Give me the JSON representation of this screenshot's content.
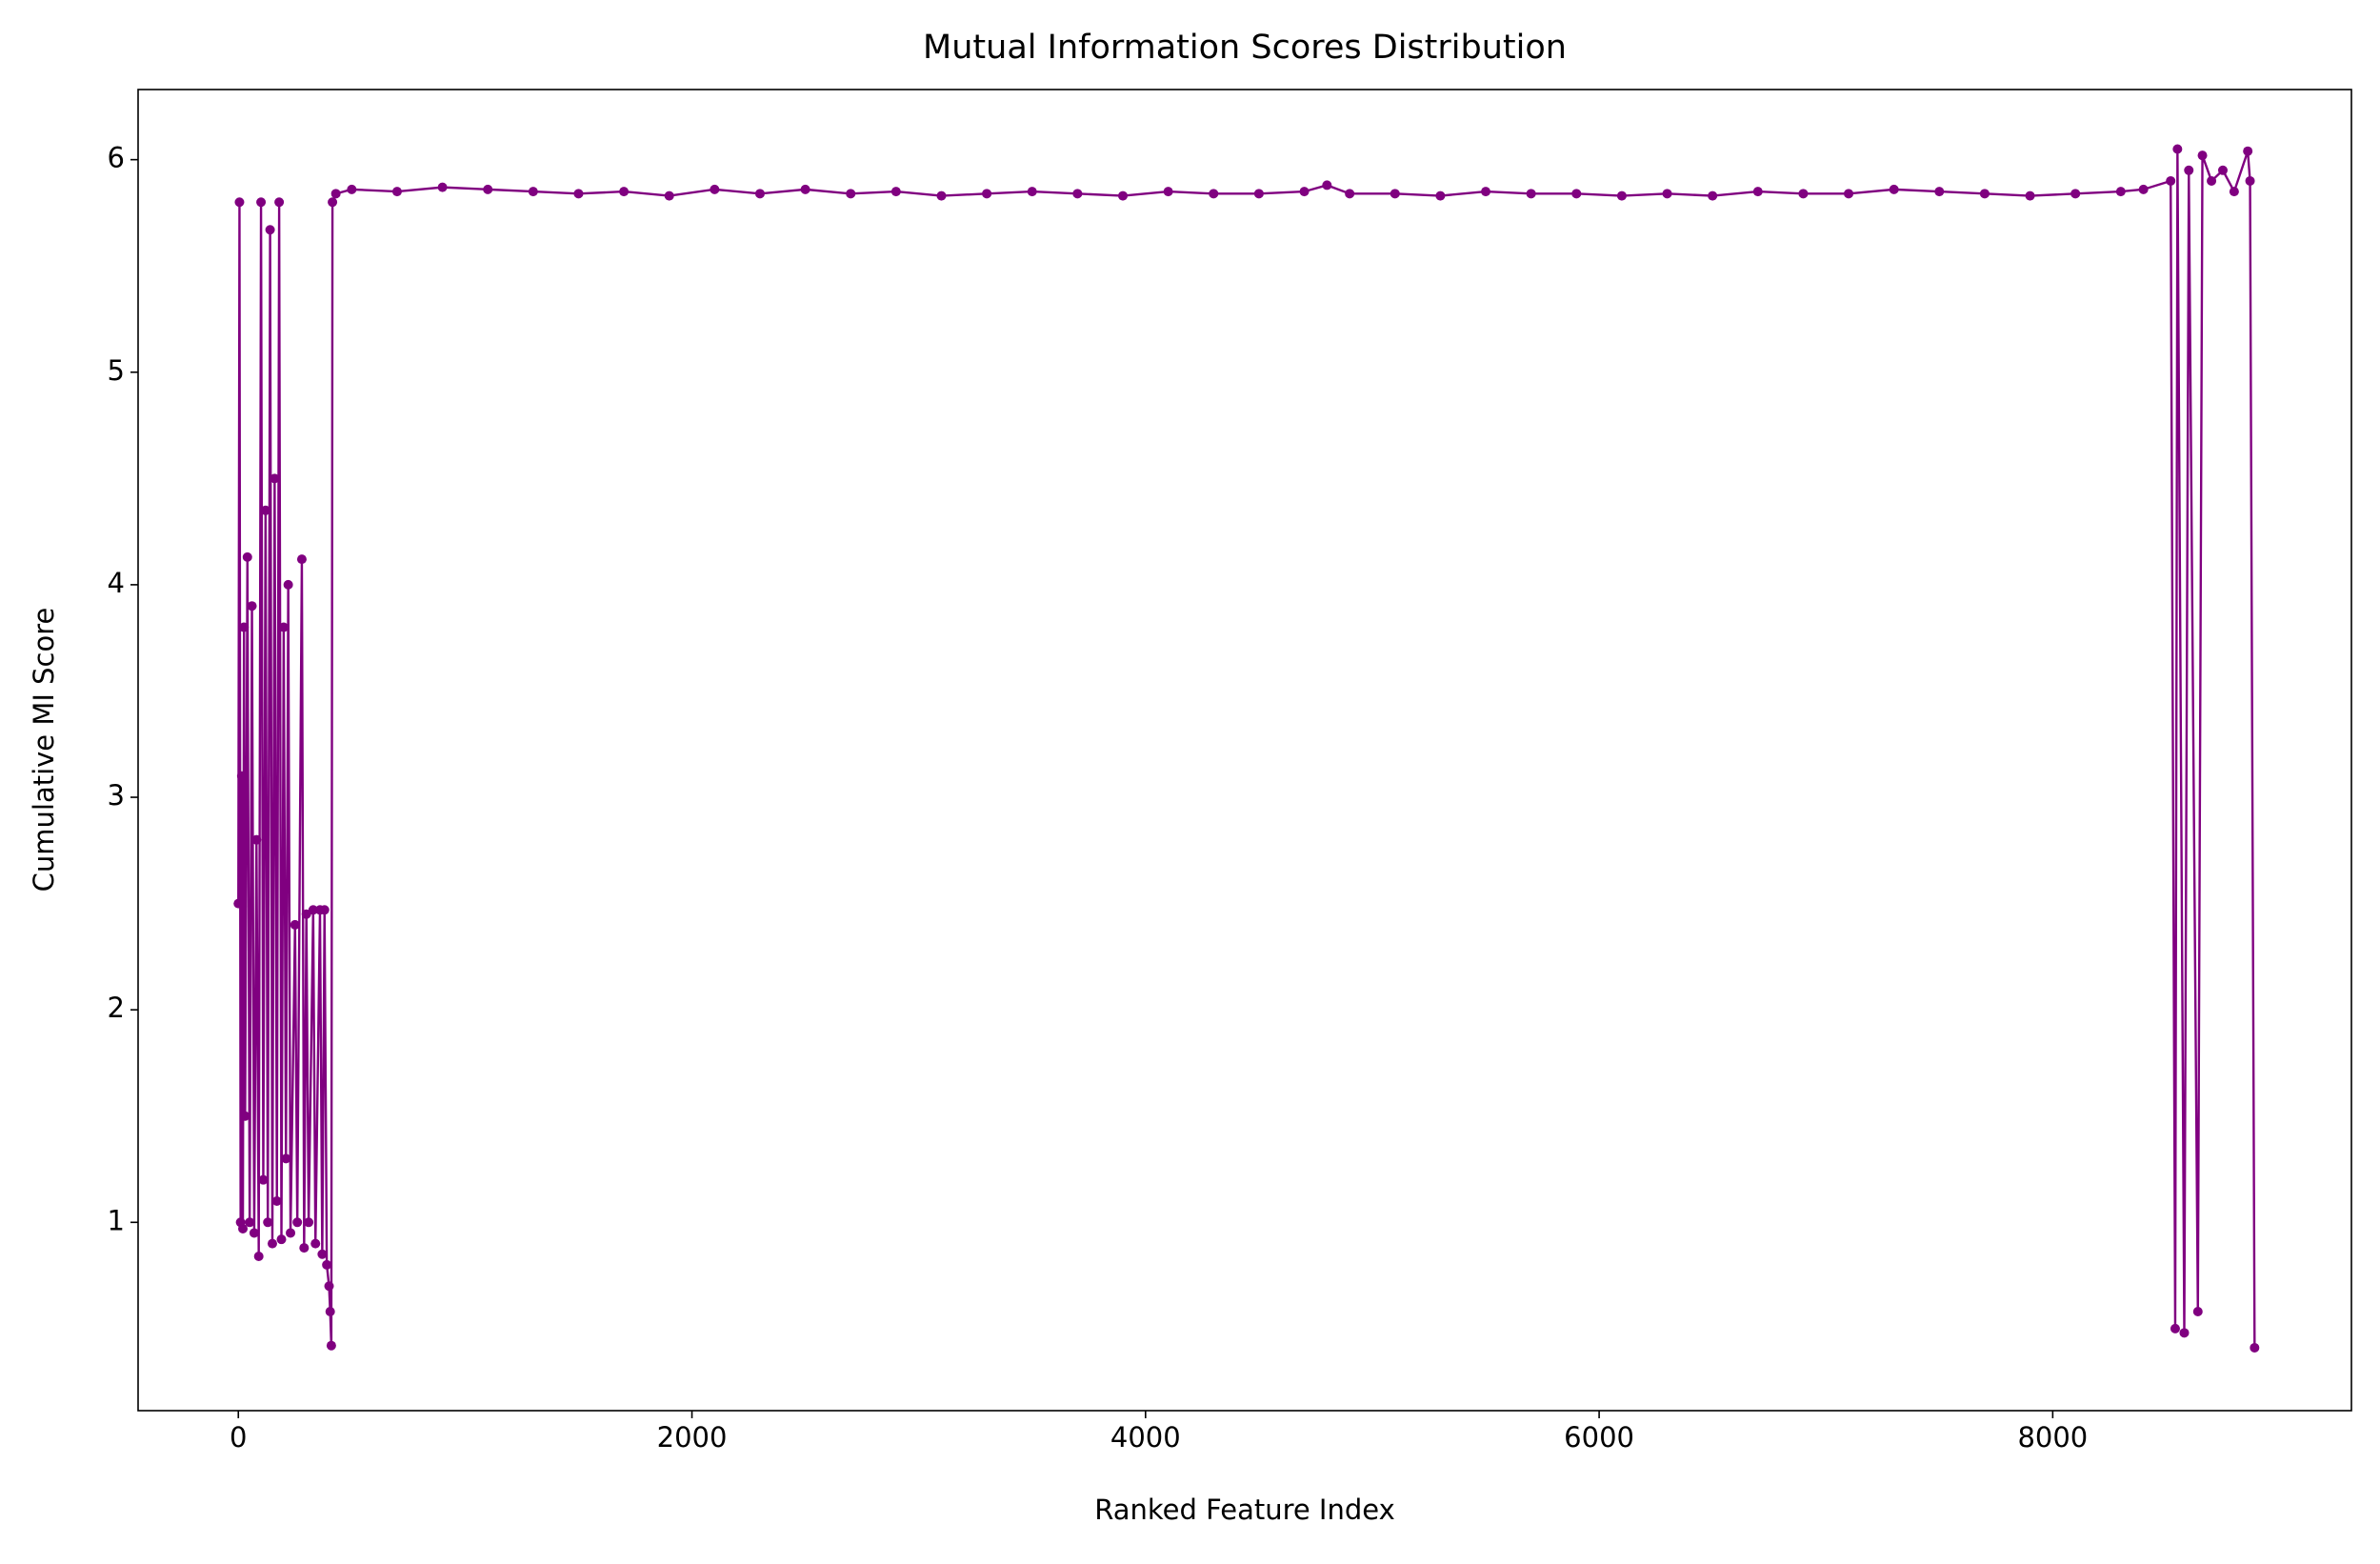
{
  "chart_data": {
    "type": "line",
    "title": "Mutual Information Scores Distribution",
    "x_label": "Ranked Feature Index",
    "y_label": "Cumulative MI Score",
    "color": "#800080",
    "grid": false,
    "xlim": [
      -442,
      9317
    ],
    "ylim": [
      0.114,
      6.33
    ],
    "xticks": [
      0,
      2000,
      4000,
      6000,
      8000
    ],
    "yticks": [
      1,
      2,
      3,
      4,
      5,
      6
    ],
    "x": [
      0,
      5,
      10,
      15,
      20,
      25,
      30,
      40,
      50,
      60,
      70,
      80,
      90,
      100,
      110,
      120,
      130,
      140,
      150,
      160,
      170,
      180,
      190,
      200,
      210,
      220,
      230,
      250,
      260,
      280,
      290,
      300,
      310,
      330,
      340,
      360,
      370,
      380,
      390,
      400,
      405,
      410,
      415,
      430,
      500,
      700,
      900,
      1100,
      1300,
      1500,
      1700,
      1900,
      2100,
      2300,
      2500,
      2700,
      2900,
      3100,
      3300,
      3500,
      3700,
      3900,
      4100,
      4300,
      4500,
      4700,
      4800,
      4900,
      5100,
      5300,
      5500,
      5700,
      5900,
      6100,
      6300,
      6500,
      6700,
      6900,
      7100,
      7300,
      7500,
      7700,
      7900,
      8100,
      8300,
      8400,
      8520,
      8540,
      8550,
      8580,
      8600,
      8640,
      8660,
      8700,
      8750,
      8800,
      8860,
      8870,
      8890
    ],
    "values": [
      2.5,
      5.8,
      1.0,
      3.1,
      0.97,
      3.8,
      1.5,
      4.13,
      1.0,
      3.9,
      0.95,
      2.8,
      0.84,
      5.8,
      1.2,
      4.35,
      1.0,
      5.67,
      0.9,
      4.5,
      1.1,
      5.8,
      0.92,
      3.8,
      1.3,
      4.0,
      0.95,
      2.4,
      1.0,
      4.12,
      0.88,
      2.45,
      1.0,
      2.47,
      0.9,
      2.47,
      0.85,
      2.47,
      0.8,
      0.7,
      0.58,
      0.42,
      5.8,
      5.84,
      5.86,
      5.85,
      5.87,
      5.86,
      5.85,
      5.84,
      5.85,
      5.83,
      5.86,
      5.84,
      5.86,
      5.84,
      5.85,
      5.83,
      5.84,
      5.85,
      5.84,
      5.83,
      5.85,
      5.84,
      5.84,
      5.85,
      5.88,
      5.84,
      5.84,
      5.83,
      5.85,
      5.84,
      5.84,
      5.83,
      5.84,
      5.83,
      5.85,
      5.84,
      5.84,
      5.86,
      5.85,
      5.84,
      5.83,
      5.84,
      5.85,
      5.86,
      5.9,
      0.5,
      6.05,
      0.48,
      5.95,
      0.58,
      6.02,
      5.9,
      5.95,
      5.85,
      6.04,
      5.9,
      0.41
    ]
  }
}
